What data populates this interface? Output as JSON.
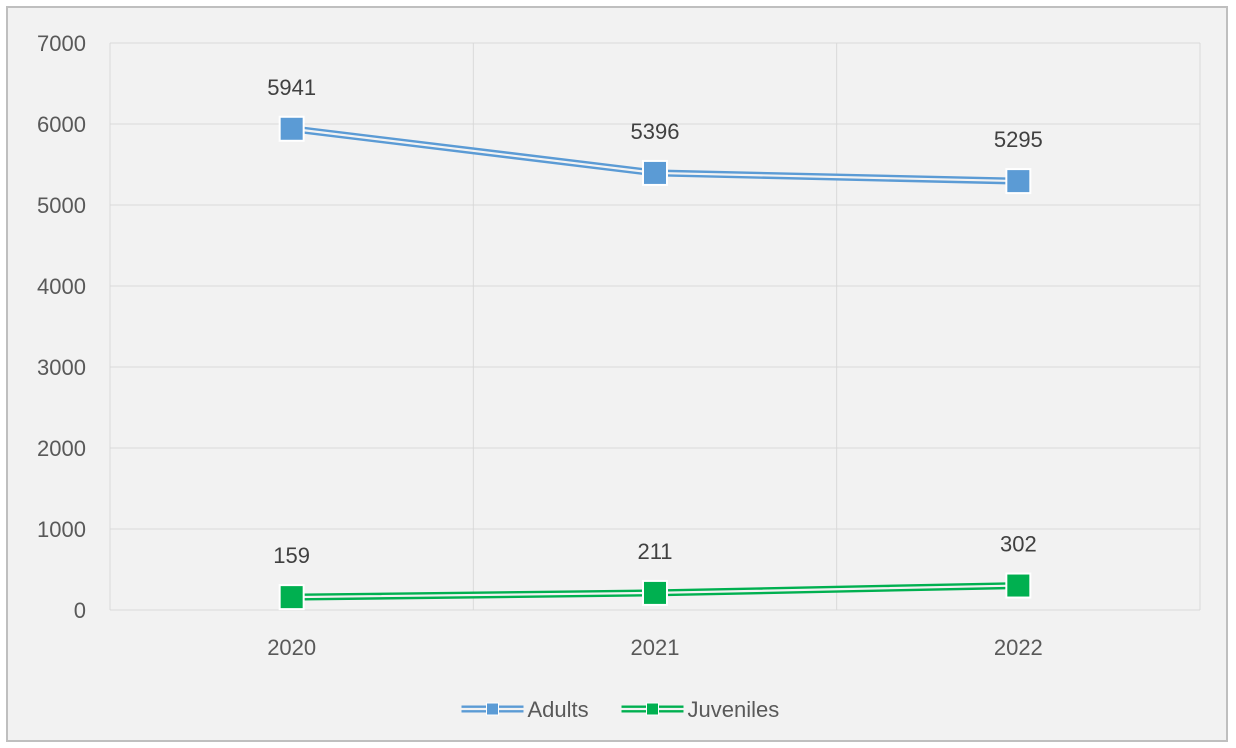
{
  "chart_data": {
    "type": "line",
    "categories": [
      "2020",
      "2021",
      "2022"
    ],
    "ylim": [
      0,
      7000
    ],
    "yticks": [
      0,
      1000,
      2000,
      3000,
      4000,
      5000,
      6000,
      7000
    ],
    "grid": true,
    "legend_position": "bottom",
    "series": [
      {
        "name": "Adults",
        "values": [
          5941,
          5396,
          5295
        ],
        "color": "#5b9bd5",
        "marker": "square"
      },
      {
        "name": "Juveniles",
        "values": [
          159,
          211,
          302
        ],
        "color": "#00b050",
        "marker": "square"
      }
    ],
    "title": "",
    "xlabel": "",
    "ylabel": ""
  }
}
